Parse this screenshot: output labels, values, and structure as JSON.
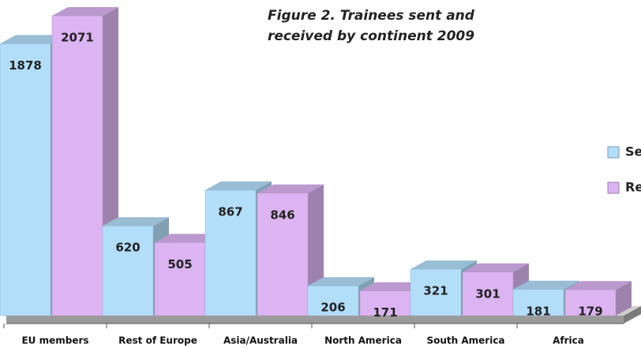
{
  "chart_data": {
    "type": "bar3d",
    "title": [
      "Figure 2. Trainees sent and",
      "received by continent 2009"
    ],
    "categories": [
      "EU members",
      "Rest of Europe",
      "Asia/Australia",
      "North America",
      "South America",
      "Africa"
    ],
    "series": [
      {
        "name": "Sent",
        "color": "#b3defa",
        "values": [
          1878,
          620,
          867,
          206,
          321,
          181
        ]
      },
      {
        "name": "Received",
        "color": "#dcb4f2",
        "values": [
          2071,
          505,
          846,
          171,
          301,
          179
        ]
      }
    ],
    "legend": "right"
  }
}
